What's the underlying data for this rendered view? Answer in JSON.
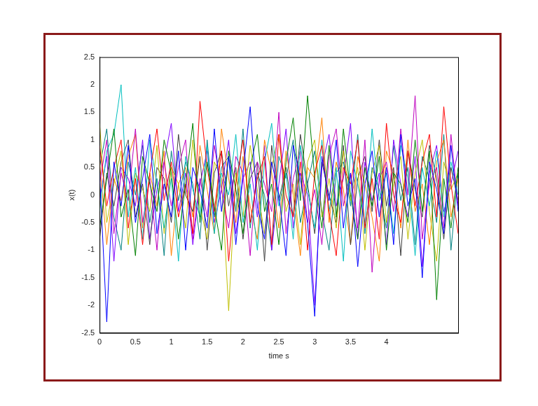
{
  "chart_data": {
    "type": "line",
    "xlabel": "time s",
    "ylabel": "x(t)",
    "xlim": [
      0,
      5
    ],
    "xticks": [
      0,
      0.5,
      1,
      1.5,
      2,
      2.5,
      3,
      3.5,
      4
    ],
    "ylim": [
      -2.5,
      2.5
    ],
    "yticks": [
      -2.5,
      -2,
      -1.5,
      -1,
      -0.5,
      0,
      0.5,
      1,
      1.5,
      2,
      2.5
    ],
    "grid": false,
    "x": [
      0,
      0.1,
      0.2,
      0.3,
      0.4,
      0.5,
      0.6,
      0.7,
      0.8,
      0.9,
      1,
      1.1,
      1.2,
      1.3,
      1.4,
      1.5,
      1.6,
      1.7,
      1.8,
      1.9,
      2,
      2.1,
      2.2,
      2.3,
      2.4,
      2.5,
      2.6,
      2.7,
      2.8,
      2.9,
      3,
      3.1,
      3.2,
      3.3,
      3.4,
      3.5,
      3.6,
      3.7,
      3.8,
      3.9,
      4,
      4.1,
      4.2,
      4.3,
      4.4,
      4.5,
      4.6,
      4.7,
      4.8,
      4.9,
      5
    ],
    "series": [
      {
        "color": "#0000ff",
        "values": [
          0.4,
          -2.3,
          0.6,
          -0.2,
          0.9,
          -0.5,
          0.3,
          1.1,
          -0.7,
          0.2,
          -0.4,
          0.8,
          -1.0,
          0.5,
          0.1,
          -0.6,
          1.2,
          -0.3,
          0.7,
          -0.9,
          0.4,
          1.6,
          -0.2,
          -0.8,
          0.6,
          0.0,
          -1.1,
          0.9,
          0.3,
          -0.5,
          -2.2,
          0.7,
          -0.1,
          1.0,
          -0.6,
          0.4,
          -1.3,
          0.2,
          0.8,
          -0.4,
          0.5,
          -0.9,
          1.1,
          -0.2,
          0.3,
          -1.5,
          0.6,
          0.1,
          -0.7,
          0.9,
          -0.3
        ]
      },
      {
        "color": "#008000",
        "values": [
          -0.6,
          0.3,
          1.2,
          -0.4,
          0.1,
          -1.1,
          0.7,
          0.2,
          -0.3,
          1.0,
          0.4,
          -0.8,
          0.2,
          1.3,
          -0.5,
          0.6,
          -0.2,
          -1.0,
          0.8,
          0.1,
          -0.7,
          0.5,
          1.1,
          -0.3,
          0.2,
          -0.9,
          0.6,
          1.4,
          -0.1,
          1.8,
          0.3,
          -0.6,
          0.9,
          -0.4,
          1.2,
          0.0,
          -0.8,
          0.5,
          -0.2,
          0.7,
          -1.0,
          0.4,
          0.2,
          -0.5,
          1.0,
          -0.3,
          0.8,
          -1.9,
          0.3,
          -0.6,
          0.5
        ]
      },
      {
        "color": "#ff0000",
        "values": [
          0.9,
          -0.2,
          0.5,
          1.0,
          -0.6,
          0.3,
          -0.9,
          0.4,
          1.2,
          -0.1,
          0.6,
          -0.4,
          0.2,
          -0.7,
          1.7,
          0.5,
          -0.3,
          0.8,
          -1.2,
          0.2,
          1.0,
          -0.5,
          0.3,
          0.7,
          -0.9,
          1.1,
          0.0,
          -0.4,
          0.6,
          -1.0,
          0.4,
          0.9,
          -0.3,
          -1.1,
          0.5,
          0.2,
          1.0,
          -0.6,
          0.3,
          -0.8,
          1.3,
          0.0,
          -0.5,
          0.8,
          -0.2,
          0.6,
          1.1,
          -0.4,
          1.6,
          0.2,
          -0.7
        ]
      },
      {
        "color": "#00bfbf",
        "values": [
          -0.3,
          0.8,
          1.1,
          2.0,
          -0.4,
          0.5,
          -0.8,
          1.0,
          0.2,
          -0.6,
          0.3,
          -1.2,
          0.7,
          0.1,
          -0.4,
          0.9,
          -0.7,
          0.4,
          0.0,
          1.1,
          -0.5,
          0.2,
          -1.0,
          0.6,
          1.3,
          -0.2,
          0.4,
          -0.8,
          0.9,
          0.1,
          -0.6,
          1.0,
          -0.3,
          0.5,
          -1.2,
          0.8,
          0.2,
          -0.5,
          1.2,
          -0.1,
          0.4,
          -0.7,
          0.9,
          0.3,
          -1.1,
          0.5,
          -0.2,
          0.8,
          -0.4,
          0.6,
          0.0
        ]
      },
      {
        "color": "#bf00bf",
        "values": [
          0.2,
          1.0,
          -0.7,
          0.4,
          -0.1,
          1.2,
          -0.5,
          0.3,
          -1.0,
          0.6,
          -0.2,
          0.5,
          1.0,
          -0.8,
          0.3,
          -0.4,
          0.9,
          0.1,
          -0.6,
          0.7,
          0.4,
          -1.1,
          0.6,
          0.2,
          -0.3,
          1.5,
          -0.7,
          0.3,
          0.8,
          -0.5,
          0.1,
          -0.9,
          0.7,
          1.2,
          -0.2,
          0.4,
          -0.6,
          1.0,
          -1.4,
          0.3,
          0.6,
          -0.3,
          1.2,
          0.0,
          1.8,
          -0.8,
          0.2,
          0.5,
          -0.6,
          1.1,
          -0.2
        ]
      },
      {
        "color": "#bfbf00",
        "values": [
          1.3,
          -0.5,
          0.2,
          0.8,
          -0.9,
          0.4,
          0.1,
          -0.3,
          0.9,
          -0.7,
          0.5,
          0.2,
          -0.6,
          1.0,
          -0.2,
          -0.8,
          0.6,
          0.3,
          -2.1,
          0.4,
          -0.4,
          0.9,
          0.1,
          -0.7,
          0.5,
          1.1,
          -0.3,
          0.2,
          -0.9,
          0.6,
          1.0,
          -0.4,
          0.3,
          -0.6,
          0.8,
          -0.1,
          0.5,
          -1.0,
          0.4,
          0.9,
          -0.5,
          0.2,
          0.7,
          -0.8,
          0.4,
          1.0,
          -0.3,
          -1.2,
          0.6,
          0.1,
          0.4
        ]
      },
      {
        "color": "#404040",
        "values": [
          -0.8,
          0.4,
          -0.2,
          0.6,
          1.0,
          -0.4,
          0.2,
          -0.9,
          0.5,
          0.3,
          -0.5,
          1.1,
          0.0,
          -0.3,
          0.7,
          -1.0,
          0.4,
          0.8,
          -0.2,
          0.5,
          -0.8,
          0.3,
          0.6,
          -1.2,
          0.9,
          -0.1,
          0.5,
          -0.4,
          1.1,
          0.2,
          -0.7,
          0.6,
          0.0,
          -0.5,
          0.9,
          -0.9,
          0.3,
          0.7,
          -0.3,
          1.0,
          -0.2,
          0.5,
          -1.1,
          0.8,
          0.1,
          -0.4,
          0.9,
          0.3,
          -0.8,
          0.5,
          -0.1
        ]
      },
      {
        "color": "#ff8000",
        "values": [
          0.6,
          -0.9,
          0.3,
          -0.1,
          0.7,
          1.1,
          -0.6,
          0.4,
          -0.2,
          0.8,
          -1.1,
          0.2,
          0.5,
          -0.4,
          0.9,
          0.1,
          -0.7,
          1.2,
          0.3,
          -0.5,
          0.7,
          -0.2,
          -0.8,
          1.0,
          0.4,
          -0.6,
          0.8,
          0.0,
          -1.1,
          0.5,
          0.3,
          1.4,
          -0.5,
          0.6,
          0.1,
          -0.9,
          0.7,
          0.2,
          -0.4,
          -1.2,
          0.8,
          0.4,
          -0.6,
          1.0,
          -0.3,
          0.2,
          -0.9,
          0.6,
          1.0,
          -0.4,
          0.3
        ]
      },
      {
        "color": "#8000ff",
        "values": [
          -0.1,
          0.7,
          -1.2,
          0.5,
          0.3,
          -0.2,
          1.0,
          -0.8,
          0.1,
          0.6,
          1.3,
          -0.3,
          0.4,
          -0.9,
          0.2,
          0.8,
          -0.5,
          0.1,
          1.0,
          -0.7,
          0.3,
          0.6,
          -0.4,
          0.9,
          -1.0,
          0.2,
          1.2,
          -0.6,
          0.4,
          0.0,
          -2.0,
          0.5,
          1.1,
          -0.2,
          0.3,
          1.3,
          -0.8,
          0.6,
          -0.1,
          0.4,
          -0.9,
          1.0,
          0.2,
          -0.4,
          0.7,
          -1.3,
          0.4,
          0.9,
          -0.3,
          0.2,
          0.8
        ]
      },
      {
        "color": "#008080",
        "values": [
          0.5,
          1.2,
          -0.4,
          -1.0,
          0.6,
          0.0,
          0.9,
          -0.5,
          0.3,
          -1.1,
          0.8,
          -0.1,
          0.6,
          0.2,
          -0.8,
          1.0,
          -0.4,
          0.5,
          0.7,
          -0.3,
          1.2,
          -0.6,
          0.4,
          0.0,
          -1.0,
          0.7,
          0.3,
          1.0,
          -0.5,
          0.2,
          0.8,
          -0.3,
          -1.0,
          0.4,
          0.6,
          -0.2,
          1.1,
          -0.7,
          0.5,
          0.1,
          -0.6,
          0.9,
          -0.1,
          0.5,
          -0.9,
          0.7,
          0.3,
          -0.5,
          1.1,
          -1.0,
          0.4
        ]
      }
    ]
  }
}
